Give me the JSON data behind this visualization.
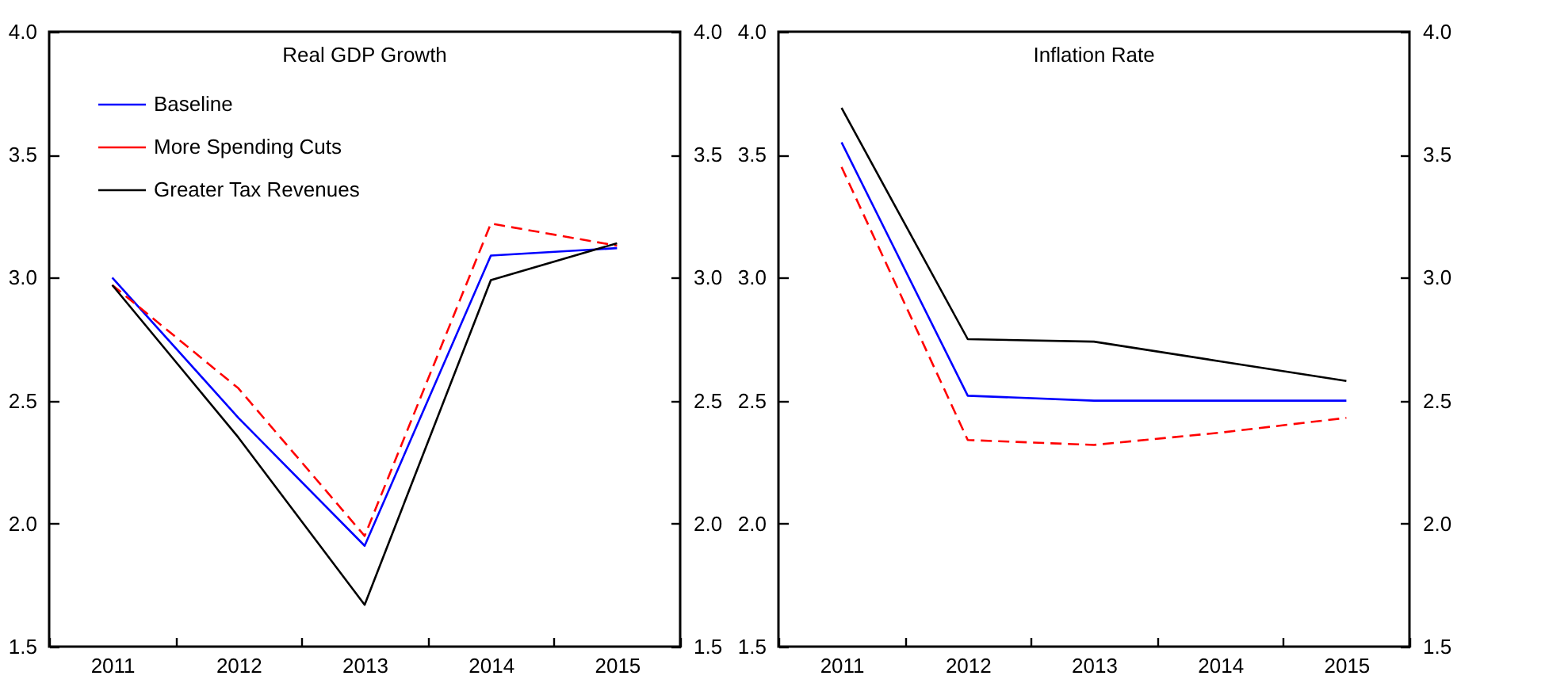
{
  "chart_data": [
    {
      "type": "line",
      "title": "Real GDP Growth",
      "categories": [
        "2011",
        "2012",
        "2013",
        "2014",
        "2015"
      ],
      "series": [
        {
          "name": "Baseline",
          "color": "#0000ff",
          "line_style": "solid",
          "values": [
            3.0,
            2.43,
            1.91,
            3.09,
            3.12
          ]
        },
        {
          "name": "More Spending Cuts",
          "color": "#ff0000",
          "line_style": "dashed",
          "values": [
            2.97,
            2.55,
            1.95,
            3.22,
            3.13
          ]
        },
        {
          "name": "Greater Tax Revenues",
          "color": "#000000",
          "line_style": "solid",
          "values": [
            2.97,
            2.35,
            1.67,
            2.99,
            3.14
          ]
        }
      ],
      "ylim": [
        1.5,
        4.0
      ],
      "yticks": [
        {
          "value": 1.5,
          "label": "1.5"
        },
        {
          "value": 2.0,
          "label": "2.0"
        },
        {
          "value": 2.5,
          "label": "2.5"
        },
        {
          "value": 3.0,
          "label": "3.0"
        },
        {
          "value": 3.5,
          "label": "3.5"
        },
        {
          "value": 4.0,
          "label": "4.0"
        }
      ],
      "y2lim": [
        1.5,
        4.0
      ],
      "y2ticks": [
        {
          "value": 1.5,
          "label": "1.5"
        },
        {
          "value": 2.0,
          "label": "2.0"
        },
        {
          "value": 2.5,
          "label": "2.5"
        },
        {
          "value": 3.0,
          "label": "3.0"
        },
        {
          "value": 3.5,
          "label": "3.5"
        },
        {
          "value": 4.0,
          "label": "4.0"
        }
      ],
      "grid": false,
      "legend": "top left",
      "marker": "none"
    },
    {
      "type": "line",
      "title": "Inflation Rate",
      "categories": [
        "2011",
        "2012",
        "2013",
        "2014",
        "2015"
      ],
      "series": [
        {
          "color": "#0000ff",
          "line_style": "solid",
          "values": [
            3.55,
            2.52,
            2.5,
            2.5,
            2.5
          ]
        },
        {
          "color": "#ff0000",
          "line_style": "dashed",
          "values": [
            3.45,
            2.34,
            2.32,
            2.37,
            2.43
          ]
        },
        {
          "color": "#000000",
          "line_style": "solid",
          "values": [
            3.69,
            2.75,
            2.74,
            2.66,
            2.58
          ]
        }
      ],
      "ylim": [
        1.5,
        4.0
      ],
      "yticks": [
        {
          "value": 1.5,
          "label": "1.5"
        },
        {
          "value": 2.0,
          "label": "2.0"
        },
        {
          "value": 2.5,
          "label": "2.5"
        },
        {
          "value": 3.0,
          "label": "3.0"
        },
        {
          "value": 3.5,
          "label": "3.5"
        },
        {
          "value": 4.0,
          "label": "4.0"
        }
      ],
      "y2lim": [
        1.5,
        4.0
      ],
      "y2ticks": [
        {
          "value": 1.5,
          "label": "1.5"
        },
        {
          "value": 2.0,
          "label": "2.0"
        },
        {
          "value": 2.5,
          "label": "2.5"
        },
        {
          "value": 3.0,
          "label": "3.0"
        },
        {
          "value": 3.5,
          "label": "3.5"
        },
        {
          "value": 4.0,
          "label": "4.0"
        }
      ],
      "grid": false,
      "legend": false,
      "marker": "none"
    }
  ]
}
